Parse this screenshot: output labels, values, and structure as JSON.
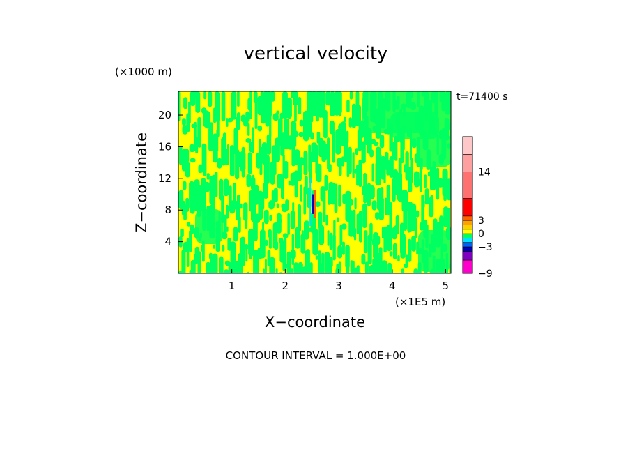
{
  "chart_data": {
    "type": "heatmap",
    "title": "vertical velocity",
    "xlabel": "X−coordinate",
    "ylabel": "Z−coordinate",
    "x_unit": "(×1E5 m)",
    "y_unit": "(×1000 m)",
    "time_label": "t=71400 s",
    "contour_interval": "CONTOUR INTERVAL = 1.000E+00",
    "xlim": [
      0,
      5.1
    ],
    "ylim": [
      0,
      23
    ],
    "x_ticks": [
      "1",
      "2",
      "3",
      "4",
      "5"
    ],
    "y_ticks": [
      "4",
      "8",
      "12",
      "16",
      "20"
    ],
    "dominant_levels": [
      "yellow: 0 to 1",
      "green: -1 to 0"
    ],
    "colorbar": {
      "tick_labels": [
        "14",
        "3",
        "0",
        "−3",
        "−9"
      ],
      "tick_values": [
        14,
        3,
        0,
        -3,
        -9
      ],
      "bands": [
        {
          "from": -9,
          "to": -6,
          "color": "#ff00cc"
        },
        {
          "from": -6,
          "to": -4,
          "color": "#8000c0"
        },
        {
          "from": -4,
          "to": -3,
          "color": "#0000c0"
        },
        {
          "from": -3,
          "to": -2,
          "color": "#0060ff"
        },
        {
          "from": -2,
          "to": -1,
          "color": "#00e0ff"
        },
        {
          "from": -1,
          "to": 0,
          "color": "#00ff60"
        },
        {
          "from": 0,
          "to": 1,
          "color": "#ffff00"
        },
        {
          "from": 1,
          "to": 2,
          "color": "#ffd000"
        },
        {
          "from": 2,
          "to": 3,
          "color": "#ffa000"
        },
        {
          "from": 3,
          "to": 4,
          "color": "#ff6000"
        },
        {
          "from": 4,
          "to": 8,
          "color": "#ff0000"
        },
        {
          "from": 8,
          "to": 14,
          "color": "#ff7070"
        },
        {
          "from": 14,
          "to": 18,
          "color": "#ffa0a0"
        },
        {
          "from": 18,
          "to": 22,
          "color": "#ffc8c8"
        }
      ]
    },
    "field_colors": {
      "positive_small": "#ffff00",
      "negative_small": "#00ff60"
    }
  }
}
